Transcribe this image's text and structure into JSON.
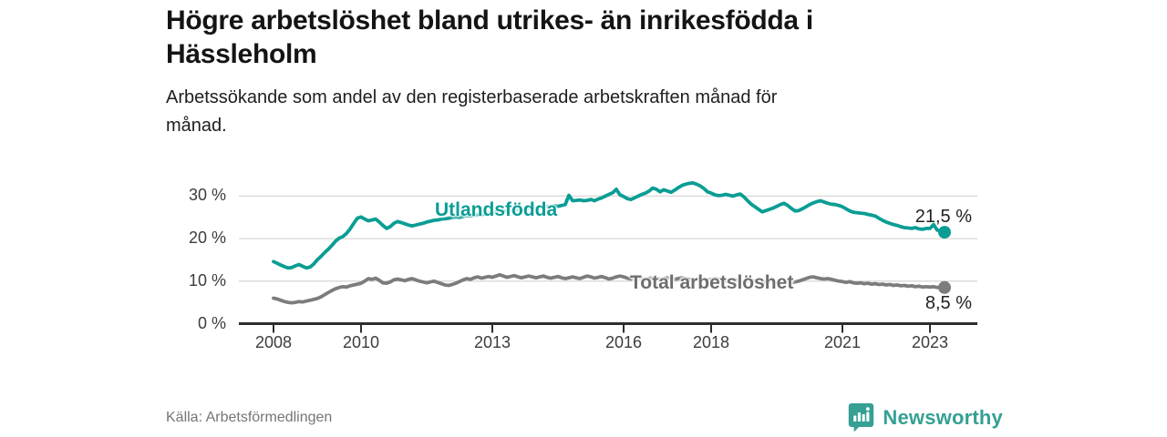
{
  "title_lines": [
    "Högre arbetslöshet bland utrikes- än inrikesfödda i",
    "Hässleholm"
  ],
  "subtitle_lines": [
    "Arbetssökande som andel av den registerbaserade arbetskraften månad för",
    "månad."
  ],
  "footer": {
    "source": "Källa: Arbetsförmedlingen",
    "brand": "Newsworthy",
    "brand_color": "#35a093"
  },
  "chart_data": {
    "type": "line",
    "title": "Högre arbetslöshet bland utrikes- än inrikesfödda i Hässleholm",
    "subtitle": "Arbetssökande som andel av den registerbaserade arbetskraften månad för månad.",
    "source": "Arbetsförmedlingen",
    "grid": "horizontal",
    "colors": {
      "gridline": "#d8d8d8",
      "axis": "#2e2e2e",
      "axis_text": "#3c3c3c"
    },
    "x_axis": {
      "start_year": 2008,
      "frequency": "monthly",
      "ticks": [
        {
          "label": "2008",
          "year": 2008
        },
        {
          "label": "2010",
          "year": 2010
        },
        {
          "label": "2013",
          "year": 2013
        },
        {
          "label": "2016",
          "year": 2016
        },
        {
          "label": "2018",
          "year": 2018
        },
        {
          "label": "2021",
          "year": 2021
        },
        {
          "label": "2023",
          "year": 2023
        }
      ]
    },
    "y_axis": {
      "unit": "%",
      "range": [
        0,
        35
      ],
      "ticks": [
        {
          "label": "0 %",
          "value": 0
        },
        {
          "label": "10 %",
          "value": 10
        },
        {
          "label": "20 %",
          "value": 20
        },
        {
          "label": "30 %",
          "value": 30
        }
      ]
    },
    "series": [
      {
        "name": "Utlandsfödda",
        "color": "#0a9d94",
        "end_label": "21,5 %",
        "end_value": 21.5,
        "start": "2008-01",
        "values": [
          14.6,
          14.2,
          13.8,
          13.4,
          13.1,
          13.2,
          13.6,
          13.9,
          13.5,
          13.1,
          13.3,
          14.0,
          15.0,
          15.8,
          16.7,
          17.5,
          18.4,
          19.4,
          20.1,
          20.5,
          21.2,
          22.3,
          23.6,
          24.8,
          25.1,
          24.6,
          24.2,
          24.4,
          24.6,
          23.9,
          23.1,
          22.4,
          22.8,
          23.6,
          24.0,
          23.8,
          23.5,
          23.2,
          23.0,
          23.2,
          23.4,
          23.6,
          23.9,
          24.1,
          24.3,
          24.4,
          24.6,
          24.7,
          24.8,
          25.0,
          25.1,
          25.0,
          25.2,
          25.4,
          25.3,
          25.5,
          25.7,
          25.6,
          25.8,
          26.0,
          26.1,
          26.3,
          26.2,
          26.4,
          26.6,
          26.5,
          26.7,
          26.9,
          26.8,
          27.0,
          27.2,
          27.1,
          27.3,
          27.2,
          27.4,
          27.6,
          27.5,
          27.7,
          27.6,
          27.8,
          28.0,
          30.2,
          28.9,
          29.0,
          29.1,
          28.9,
          29.0,
          29.2,
          28.9,
          29.3,
          29.6,
          30.0,
          30.4,
          30.8,
          31.6,
          30.3,
          29.9,
          29.4,
          29.2,
          29.6,
          30.0,
          30.4,
          30.7,
          31.2,
          31.9,
          31.6,
          31.0,
          31.5,
          31.2,
          30.9,
          31.4,
          32.0,
          32.5,
          32.8,
          33.0,
          33.1,
          32.8,
          32.4,
          31.8,
          31.0,
          30.7,
          30.3,
          30.1,
          30.2,
          30.4,
          30.2,
          30.0,
          30.3,
          30.5,
          29.8,
          28.9,
          28.1,
          27.5,
          26.9,
          26.3,
          26.6,
          26.9,
          27.2,
          27.6,
          28.0,
          28.3,
          27.8,
          27.1,
          26.5,
          26.6,
          27.0,
          27.5,
          28.0,
          28.4,
          28.7,
          28.9,
          28.6,
          28.3,
          28.1,
          28.0,
          27.8,
          27.5,
          27.0,
          26.5,
          26.2,
          26.1,
          26.0,
          25.9,
          25.7,
          25.5,
          25.3,
          24.8,
          24.3,
          23.9,
          23.6,
          23.3,
          23.1,
          22.8,
          22.6,
          22.5,
          22.4,
          22.6,
          22.3,
          22.2,
          22.4,
          22.4,
          23.3,
          22.0,
          21.8,
          21.5
        ]
      },
      {
        "name": "Total arbetslöshet",
        "color": "#7c7c7c",
        "label_color": "#6e6e6e",
        "end_label": "8,5 %",
        "end_value": 8.5,
        "start": "2008-01",
        "values": [
          6.0,
          5.8,
          5.5,
          5.2,
          5.0,
          4.9,
          5.0,
          5.2,
          5.1,
          5.3,
          5.5,
          5.7,
          5.9,
          6.3,
          6.8,
          7.3,
          7.8,
          8.2,
          8.5,
          8.7,
          8.6,
          8.9,
          9.1,
          9.3,
          9.5,
          10.0,
          10.6,
          10.4,
          10.7,
          10.2,
          9.6,
          9.5,
          9.8,
          10.3,
          10.5,
          10.3,
          10.1,
          10.4,
          10.6,
          10.3,
          10.0,
          9.8,
          9.6,
          9.8,
          10.0,
          9.7,
          9.4,
          9.1,
          9.0,
          9.2,
          9.5,
          9.9,
          10.3,
          10.6,
          10.4,
          10.8,
          11.0,
          10.7,
          10.9,
          11.1,
          10.9,
          11.2,
          11.5,
          11.2,
          10.9,
          11.1,
          11.3,
          11.0,
          10.8,
          11.0,
          11.2,
          11.0,
          10.8,
          11.0,
          11.2,
          10.9,
          10.7,
          10.9,
          11.1,
          10.8,
          10.6,
          10.8,
          11.0,
          10.8,
          10.6,
          10.9,
          11.2,
          11.0,
          10.7,
          10.9,
          11.1,
          10.8,
          10.5,
          10.7,
          11.0,
          11.2,
          11.0,
          10.7,
          10.5,
          10.7,
          10.9,
          10.6,
          10.4,
          10.6,
          10.8,
          10.6,
          10.4,
          10.6,
          10.8,
          10.6,
          10.4,
          10.6,
          10.8,
          10.6,
          10.4,
          10.2,
          10.4,
          10.6,
          10.4,
          10.2,
          10.4,
          10.6,
          10.4,
          10.2,
          10.0,
          10.2,
          10.4,
          10.2,
          10.0,
          9.8,
          10.0,
          10.2,
          10.0,
          9.8,
          9.6,
          9.8,
          10.0,
          9.8,
          9.6,
          9.8,
          10.0,
          9.8,
          9.6,
          9.8,
          10.0,
          10.3,
          10.6,
          10.9,
          11.0,
          10.8,
          10.6,
          10.5,
          10.6,
          10.4,
          10.2,
          10.0,
          9.9,
          9.7,
          9.9,
          9.6,
          9.5,
          9.6,
          9.4,
          9.5,
          9.3,
          9.4,
          9.2,
          9.3,
          9.1,
          9.2,
          9.0,
          9.1,
          8.9,
          9.0,
          8.8,
          8.9,
          8.7,
          8.8,
          8.6,
          8.7,
          8.6,
          8.7,
          8.5,
          8.6,
          8.5
        ]
      }
    ]
  }
}
